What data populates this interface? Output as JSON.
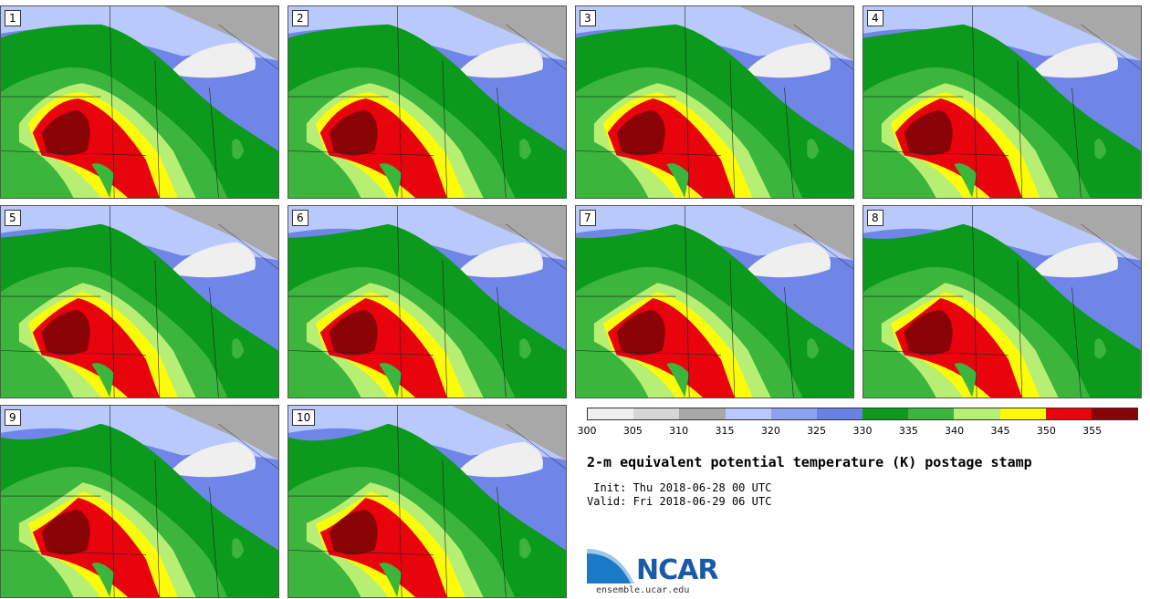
{
  "panels": [
    "1",
    "2",
    "3",
    "4",
    "5",
    "6",
    "7",
    "8",
    "9",
    "10"
  ],
  "colorbar": {
    "colors": [
      "#efefef",
      "#d6d6d6",
      "#a8a8a8",
      "#b9c9fb",
      "#8ea2f2",
      "#6a81e4",
      "#0b9a1b",
      "#3bb53c",
      "#b6ef73",
      "#fcfc09",
      "#e9030d",
      "#8a0407"
    ],
    "ticks": [
      "300",
      "305",
      "310",
      "315",
      "320",
      "325",
      "330",
      "335",
      "340",
      "345",
      "350",
      "355"
    ]
  },
  "title": "2-m equivalent potential temperature (K) postage stamp",
  "init": " Init: Thu 2018-06-28 00 UTC",
  "valid": "Valid: Fri 2018-06-29 06 UTC",
  "logo": {
    "text": "NCAR",
    "url": "ensemble.ucar.edu"
  }
}
